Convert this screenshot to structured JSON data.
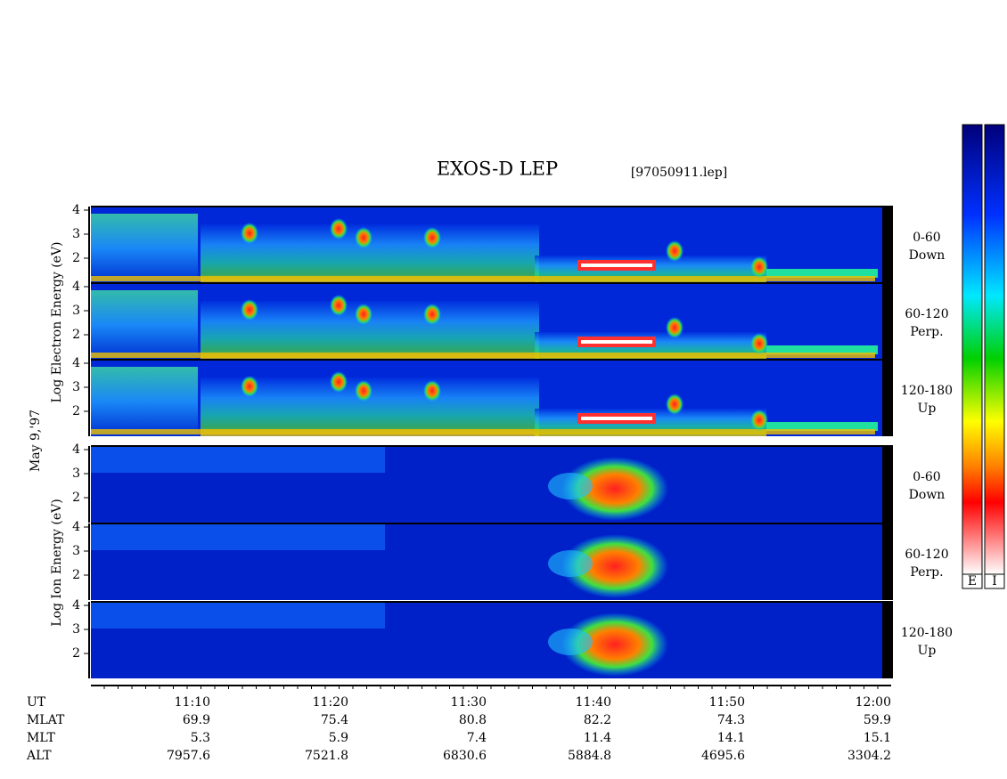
{
  "title": "EXOS-D LEP",
  "file": "[97050911.lep]",
  "date_label": "May  9,'97",
  "electron_axis_label": "Log  Electron  Energy (eV)",
  "ion_axis_label": "Log  Ion  Energy (eV)",
  "energy_ticks": [
    "2",
    "3",
    "4"
  ],
  "electron_panels": [
    {
      "angle": "0-60",
      "direction": "Down"
    },
    {
      "angle": "60-120",
      "direction": "Perp."
    },
    {
      "angle": "120-180",
      "direction": "Up"
    }
  ],
  "ion_panels": [
    {
      "angle": "0-60",
      "direction": "Down"
    },
    {
      "angle": "60-120",
      "direction": "Perp."
    },
    {
      "angle": "120-180",
      "direction": "Up"
    }
  ],
  "time_table": {
    "rows": [
      [
        "UT",
        "11:10",
        "11:20",
        "11:30",
        "11:40",
        "11:50",
        "12:00"
      ],
      [
        "MLAT",
        "69.9",
        "75.4",
        "80.8",
        "82.2",
        "74.3",
        "59.9"
      ],
      [
        "MLT",
        "5.3",
        "5.9",
        "7.4",
        "11.4",
        "14.1",
        "15.1"
      ],
      [
        "ALT",
        "7957.6",
        "7521.8",
        "6830.6",
        "5884.8",
        "4695.6",
        "3304.2"
      ]
    ]
  },
  "colorbar_labels": [
    "E",
    "I"
  ]
}
